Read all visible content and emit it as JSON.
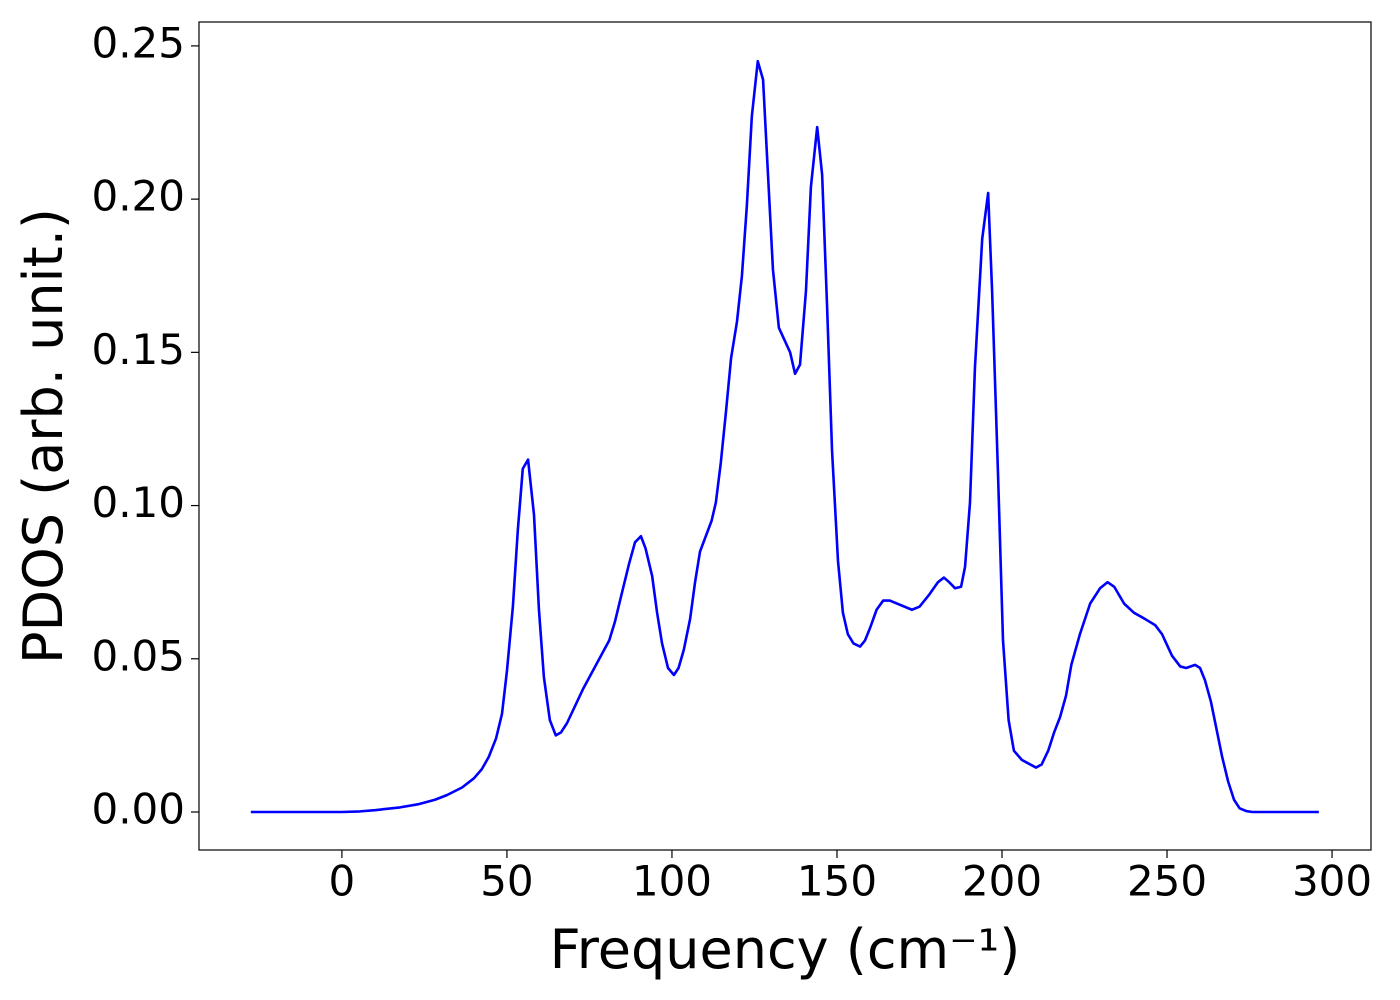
{
  "chart_data": {
    "type": "line",
    "xlabel": "Frequency (cm⁻¹)",
    "ylabel": "PDOS (arb. unit.)",
    "x": [
      -27.6,
      0,
      5.5,
      10,
      17.6,
      23,
      28.2,
      31.8,
      36.4,
      40,
      42.4,
      44.5,
      46.7,
      48.5,
      50,
      51.8,
      53.3,
      54.8,
      56.4,
      58.2,
      59.7,
      61.2,
      63,
      64.8,
      66.4,
      68.2,
      73,
      78,
      81,
      82.7,
      84.5,
      87,
      88.8,
      90.6,
      92,
      94,
      95.5,
      97,
      98.8,
      100.6,
      102,
      103.6,
      105.5,
      107,
      108.5,
      110.6,
      112,
      113.3,
      114.8,
      116.4,
      117.9,
      119.7,
      121.2,
      122.7,
      124.2,
      126,
      127.6,
      129,
      130.6,
      132.4,
      135.8,
      137.3,
      138.8,
      140.6,
      142.1,
      144,
      145.5,
      147,
      148.5,
      150.3,
      151.8,
      153.3,
      155,
      157,
      158.5,
      160,
      162,
      164,
      166,
      172.7,
      175,
      178,
      180.6,
      182.4,
      184,
      185.8,
      187.6,
      188.8,
      190.3,
      191.8,
      194,
      195.8,
      197,
      198.8,
      200.3,
      202,
      203.6,
      206,
      210.3,
      212,
      214,
      215.8,
      217.6,
      219.4,
      221,
      223.6,
      226.7,
      229.7,
      232,
      234,
      237,
      240,
      243.3,
      246.4,
      248.5,
      251.5,
      254,
      255.8,
      258.5,
      260,
      261.5,
      263.3,
      265,
      266.7,
      268.5,
      270.3,
      272,
      274,
      275.8,
      296
    ],
    "series": [
      {
        "name": "PDOS",
        "color": "#0000ff",
        "values": [
          0,
          0,
          0.0002,
          0.0006,
          0.0015,
          0.0025,
          0.004,
          0.0055,
          0.008,
          0.011,
          0.014,
          0.018,
          0.024,
          0.032,
          0.046,
          0.067,
          0.092,
          0.112,
          0.115,
          0.097,
          0.066,
          0.044,
          0.03,
          0.025,
          0.026,
          0.029,
          0.04,
          0.05,
          0.056,
          0.062,
          0.07,
          0.081,
          0.088,
          0.09,
          0.086,
          0.077,
          0.065,
          0.055,
          0.047,
          0.0447,
          0.047,
          0.053,
          0.063,
          0.075,
          0.085,
          0.091,
          0.095,
          0.101,
          0.114,
          0.131,
          0.148,
          0.16,
          0.175,
          0.198,
          0.227,
          0.245,
          0.239,
          0.21,
          0.177,
          0.158,
          0.15,
          0.143,
          0.146,
          0.17,
          0.204,
          0.2235,
          0.208,
          0.165,
          0.118,
          0.082,
          0.065,
          0.058,
          0.055,
          0.054,
          0.056,
          0.06,
          0.066,
          0.069,
          0.069,
          0.066,
          0.067,
          0.071,
          0.075,
          0.0765,
          0.075,
          0.073,
          0.0735,
          0.08,
          0.101,
          0.145,
          0.187,
          0.202,
          0.17,
          0.11,
          0.056,
          0.03,
          0.02,
          0.017,
          0.0145,
          0.0155,
          0.02,
          0.026,
          0.031,
          0.038,
          0.048,
          0.058,
          0.068,
          0.073,
          0.075,
          0.0735,
          0.068,
          0.065,
          0.063,
          0.061,
          0.058,
          0.051,
          0.0475,
          0.047,
          0.048,
          0.047,
          0.043,
          0.036,
          0.027,
          0.018,
          0.01,
          0.004,
          0.0012,
          0.0003,
          0,
          0
        ]
      }
    ],
    "xlim": [
      -43.3,
      311.8
    ],
    "ylim": [
      -0.0124,
      0.2578
    ],
    "xticks": [
      0,
      50,
      100,
      150,
      200,
      250,
      300
    ],
    "yticks": [
      {
        "value": 0,
        "label": "0.00"
      },
      {
        "value": 0.05,
        "label": "0.05"
      },
      {
        "value": 0.1,
        "label": "0.10"
      },
      {
        "value": 0.15,
        "label": "0.15"
      },
      {
        "value": 0.2,
        "label": "0.20"
      },
      {
        "value": 0.25,
        "label": "0.25"
      }
    ],
    "grid": false
  }
}
